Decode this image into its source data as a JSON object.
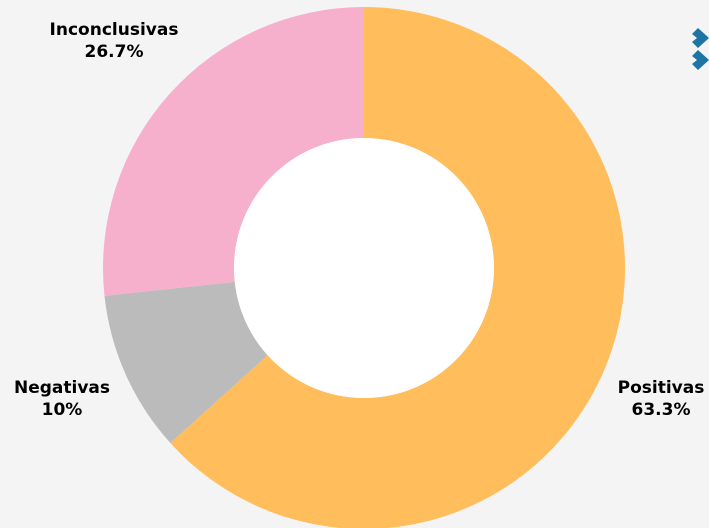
{
  "chart_data": {
    "type": "pie",
    "variant": "donut",
    "title": "",
    "slices": [
      {
        "label": "Positivas",
        "value": 63.3,
        "display": "63.3%",
        "color": "#ffbd5c"
      },
      {
        "label": "Negativas",
        "value": 10.0,
        "display": "10%",
        "color": "#bbbbbb"
      },
      {
        "label": "Inconclusivas",
        "value": 26.7,
        "display": "26.7%",
        "color": "#f7b0cc"
      }
    ],
    "start_angle_deg": 0,
    "direction": "clockwise",
    "legend": "none",
    "background": "#f4f4f4",
    "hole_color": "#ffffff"
  },
  "brand": {
    "icon": "chevron-right-icon",
    "color": "#1f74a6"
  }
}
